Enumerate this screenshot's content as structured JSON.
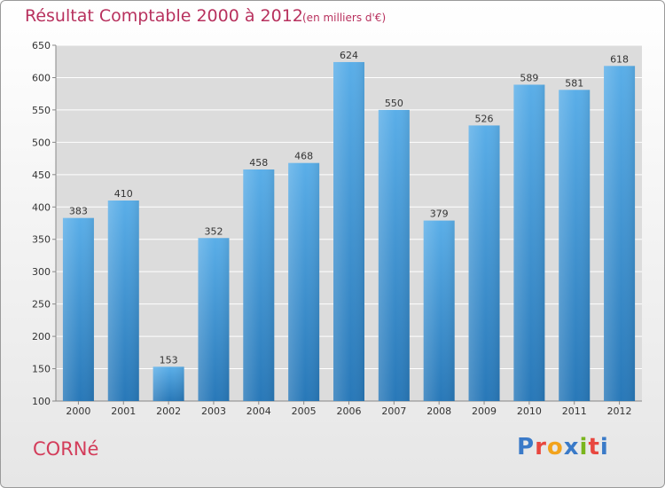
{
  "header": {
    "title": "Résultat Comptable 2000 à 2012",
    "subtitle": "(en milliers d'€)"
  },
  "place_name": "CORNé",
  "logo": {
    "text": "Proxiti",
    "letter_colors": [
      "#3a7ac8",
      "#e8473f",
      "#f2a31c",
      "#3a7ac8",
      "#7ab51d",
      "#e8473f",
      "#3a7ac8"
    ]
  },
  "colors": {
    "bar_top": "#5aaee8",
    "bar_bottom": "#2878b8",
    "grid": "#ffffff",
    "plot_bg": "#dcdcdc",
    "axis_text": "#333333"
  },
  "chart_data": {
    "type": "bar",
    "title": "Résultat Comptable 2000 à 2012",
    "subtitle": "(en milliers d'€)",
    "categories": [
      "2000",
      "2001",
      "2002",
      "2003",
      "2004",
      "2005",
      "2006",
      "2007",
      "2008",
      "2009",
      "2010",
      "2011",
      "2012"
    ],
    "values": [
      383,
      410,
      153,
      352,
      458,
      468,
      624,
      550,
      379,
      526,
      589,
      581,
      618
    ],
    "ylim": [
      100,
      650
    ],
    "yticks": [
      100,
      150,
      200,
      250,
      300,
      350,
      400,
      450,
      500,
      550,
      600,
      650
    ],
    "grid": true,
    "data_labels": true
  }
}
